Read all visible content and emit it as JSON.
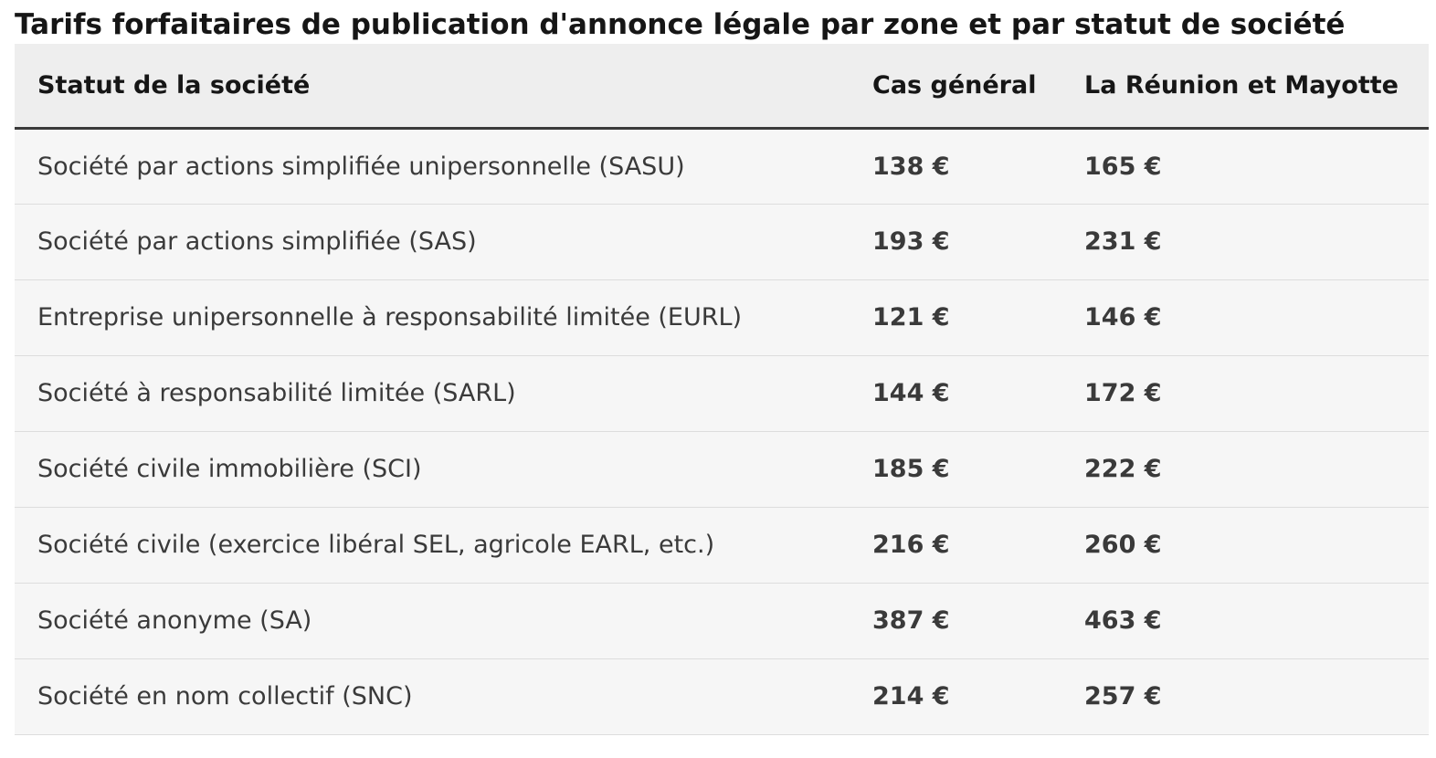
{
  "caption": "Tarifs forfaitaires de publication d'annonce légale par zone et par statut de société",
  "table": {
    "headers": [
      "Statut de la société",
      "Cas général",
      "La Réunion et Mayotte"
    ],
    "rows": [
      [
        "Société par actions simplifiée unipersonnelle (SASU)",
        "138 €",
        "165 €"
      ],
      [
        "Société par actions simplifiée (SAS)",
        "193 €",
        "231 €"
      ],
      [
        "Entreprise unipersonnelle à responsabilité limitée (EURL)",
        "121 €",
        "146 €"
      ],
      [
        "Société à responsabilité limitée (SARL)",
        "144 €",
        "172 €"
      ],
      [
        "Société civile immobilière (SCI)",
        "185 €",
        "222 €"
      ],
      [
        "Société civile (exercice libéral SEL, agricole EARL, etc.)",
        "216 €",
        "260 €"
      ],
      [
        "Société anonyme (SA)",
        "387 €",
        "463 €"
      ],
      [
        "Société en nom collectif (SNC)",
        "214 €",
        "257 €"
      ]
    ]
  }
}
